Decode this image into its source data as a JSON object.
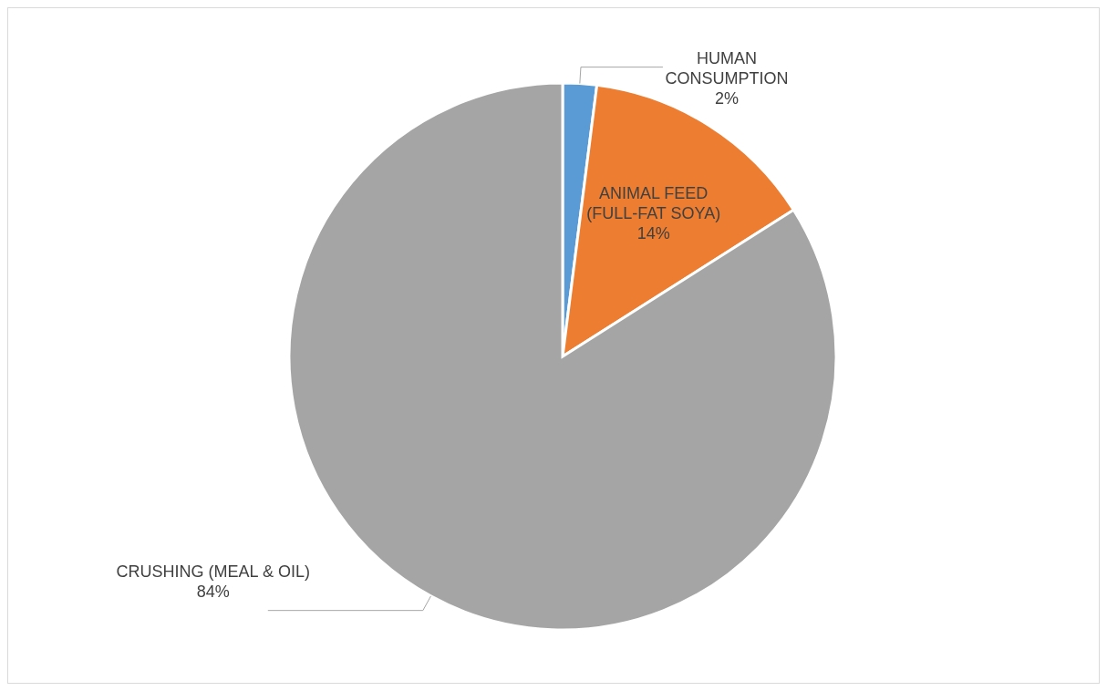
{
  "chart_data": {
    "type": "pie",
    "categories": [
      "HUMAN CONSUMPTION",
      "ANIMAL FEED (FULL-FAT SOYA)",
      "CRUSHING (MEAL & OIL)"
    ],
    "values": [
      2,
      14,
      84
    ],
    "colors": [
      "#5b9bd5",
      "#ed7d31",
      "#a5a5a5"
    ],
    "value_labels": [
      "2%",
      "14%",
      "84%"
    ],
    "legend": false
  }
}
